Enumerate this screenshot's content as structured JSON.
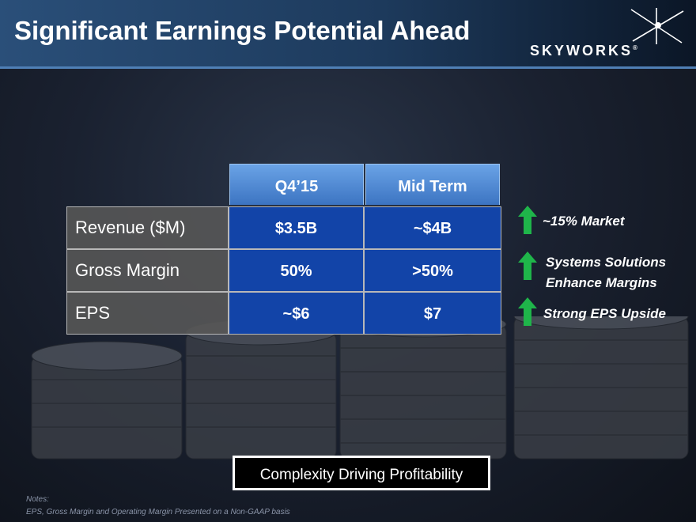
{
  "slide": {
    "title": "Significant Earnings Potential Ahead",
    "logo_text": "SKYWORKS",
    "logo_mark": "®"
  },
  "table": {
    "columns": [
      "Q4’15",
      "Mid Term"
    ],
    "rows": [
      {
        "label": "Revenue ($M)",
        "q4_15": "$3.5B",
        "mid_term": "~$4B"
      },
      {
        "label": "Gross Margin",
        "q4_15": "50%",
        "mid_term": ">50%"
      },
      {
        "label": "EPS",
        "q4_15": "~$6",
        "mid_term": "$7"
      }
    ]
  },
  "callouts": [
    {
      "icon": "green-up-arrow-icon",
      "text": "~15% Market"
    },
    {
      "icon": "green-up-arrow-icon",
      "line1": "Systems Solutions",
      "line2": "Enhance Margins"
    },
    {
      "icon": "green-up-arrow-icon",
      "text": "Strong EPS Upside"
    }
  ],
  "footer_banner": "Complexity Driving Profitability",
  "notes": {
    "heading": "Notes:",
    "text": "EPS, Gross Margin and Operating Margin  Presented on a Non-GAAP basis"
  },
  "colors": {
    "header_bar": "#1d3a5c",
    "table_header": "#4a86d6",
    "value_cell": "#1244a8",
    "label_cell": "#565656",
    "arrow": "#1fb54a"
  }
}
